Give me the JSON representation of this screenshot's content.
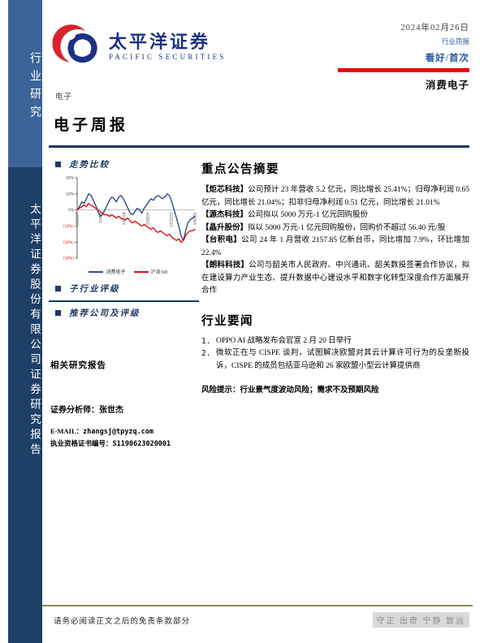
{
  "brand": {
    "name_cn": "太平洋证券",
    "name_en": "PACIFIC SECURITIES"
  },
  "sidebar": {
    "top_label": "行业研究",
    "bottom_label": "太平洋证券股份有限公司证券研究报告"
  },
  "header": {
    "date": "2024年02月26日",
    "report_type": "行业周报",
    "rating": "看好/首次",
    "subsector": "消费电子"
  },
  "main": {
    "category": "电子",
    "title": "电子周报",
    "sections": {
      "trend": "走势比较",
      "subsector_rating": "子行业评级",
      "recommend": "推荐公司及评级",
      "related_reports": "相关研究报告",
      "analyst_label": "证券分析师：",
      "analyst_name": "张世杰",
      "email_label": "E-MAIL：",
      "email": "zhangsj@tpyzq.com",
      "license_label": "执业资格证书编号：",
      "license": "S1190623020001"
    }
  },
  "right": {
    "announcements_title": "重点公告摘要",
    "announcements": [
      {
        "tag": "【炬芯科技】",
        "text": "公司预计 23 年营收 5.2 亿元，同比增长 25.41%；归母净利润 0.65 亿元，同比增长 21.04%；扣非归母净利润 0.51 亿元，同比增长 21.01%"
      },
      {
        "tag": "【源杰科技】",
        "text": "公司拟以 5000 万元-1 亿元回购股份"
      },
      {
        "tag": "【晶升股份】",
        "text": "拟以 5000 万元-1 亿元回购股份，回购价不超过 56.40 元/股"
      },
      {
        "tag": "【台积电】",
        "text": "公司 24 年 1 月营收 2157.85 亿新台币，同比增加 7.9%，环比增加 22.4%"
      },
      {
        "tag": "【朗科科技】",
        "text": "公司与韶关市人民政府、中兴通讯、韶关数投签署合作协议，拟在建设算力产业生态、提升数据中心建设水平和数字化转型深度合作方面展开合作"
      }
    ],
    "news_title": "行业要闻",
    "news": [
      {
        "num": "1.",
        "text": "OPPO AI 战略发布会官宣 2 月 20 日举行"
      },
      {
        "num": "2.",
        "text": "微软正在与 CISPE 谈判，试图解决欧盟对其云计算许可行为的反垄断投诉，CISPE 的成员包括亚马逊和 26 家欧盟小型云计算提供商"
      }
    ],
    "risk_label": "风险提示：",
    "risk_text": "行业景气度波动风险；需求不及预期风险"
  },
  "footer": {
    "disclaimer": "请务必阅读正文之后的免责条款部分",
    "motto": "守正 出奇 宁静 致远"
  },
  "chart_data": {
    "type": "line",
    "title": "走势比较",
    "x_ticks": [
      "23/2/27",
      "23/5/8",
      "23/7/18",
      "23/9/26",
      "23/12/12",
      "24/2/22"
    ],
    "y_ticks": [
      "20%",
      "10%",
      "0%",
      "(10%)",
      "(20%)",
      "(30%)"
    ],
    "y_tick_values": [
      20,
      10,
      0,
      -10,
      -20,
      -30
    ],
    "ylim": [
      -30,
      20
    ],
    "grid": "zero-line only",
    "legend_position": "bottom",
    "series": [
      {
        "name": "消费电子",
        "color": "#2b4e8c",
        "values": [
          0,
          2,
          5,
          4,
          7,
          10,
          9,
          6,
          3,
          -1,
          -4,
          -3,
          0,
          3,
          6,
          8,
          7,
          5,
          8,
          9,
          7,
          4,
          1,
          -2,
          -3,
          -1,
          1,
          0,
          -2,
          1,
          3,
          5,
          7,
          6,
          8,
          9,
          8,
          7,
          8,
          10,
          9,
          5,
          0,
          -5,
          -10,
          -16,
          -19,
          -13,
          -8,
          -6,
          -5,
          -4
        ]
      },
      {
        "name": "沪深300",
        "color": "#e0101a",
        "values": [
          0,
          1,
          2,
          3,
          2,
          4,
          3,
          2,
          1,
          0,
          -1,
          -2,
          -3,
          -3,
          -4,
          -3,
          -4,
          -5,
          -4,
          -5,
          -6,
          -6,
          -5,
          -7,
          -8,
          -7,
          -8,
          -9,
          -10,
          -9,
          -10,
          -11,
          -12,
          -11,
          -13,
          -14,
          -13,
          -14,
          -15,
          -16,
          -15,
          -17,
          -18,
          -19,
          -18,
          -20,
          -19,
          -16,
          -14,
          -13,
          -13,
          -12
        ]
      }
    ]
  },
  "colors": {
    "sidebar_light": "#3d6499",
    "sidebar_dark": "#1e3f66",
    "navy_accent": "#17365d",
    "rating_blue": "#2457a0",
    "header_red": "#e8000d",
    "logo_blue": "#1d3184",
    "logo_red": "#d8232a",
    "footer_line_olive": "#8f8c55"
  }
}
